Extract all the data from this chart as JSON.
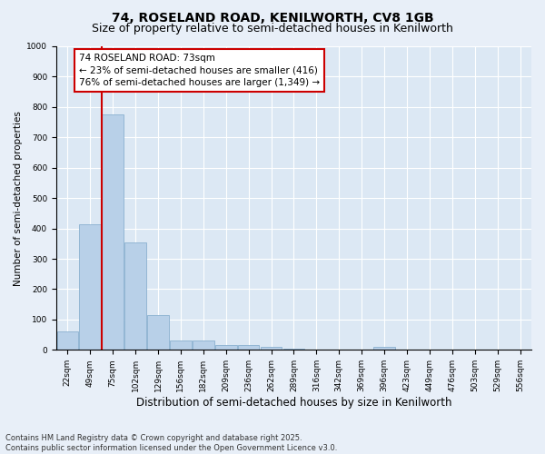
{
  "title1": "74, ROSELAND ROAD, KENILWORTH, CV8 1GB",
  "title2": "Size of property relative to semi-detached houses in Kenilworth",
  "xlabel": "Distribution of semi-detached houses by size in Kenilworth",
  "ylabel": "Number of semi-detached properties",
  "categories": [
    "22sqm",
    "49sqm",
    "75sqm",
    "102sqm",
    "129sqm",
    "156sqm",
    "182sqm",
    "209sqm",
    "236sqm",
    "262sqm",
    "289sqm",
    "316sqm",
    "342sqm",
    "369sqm",
    "396sqm",
    "423sqm",
    "449sqm",
    "476sqm",
    "503sqm",
    "529sqm",
    "556sqm"
  ],
  "values": [
    60,
    415,
    775,
    355,
    115,
    30,
    30,
    15,
    15,
    10,
    5,
    0,
    0,
    0,
    10,
    0,
    0,
    0,
    0,
    0,
    0
  ],
  "bar_color": "#b8d0e8",
  "bar_edge_color": "#8ab0d0",
  "vline_x": 1.5,
  "vline_color": "#cc0000",
  "annotation_text": "74 ROSELAND ROAD: 73sqm\n← 23% of semi-detached houses are smaller (416)\n76% of semi-detached houses are larger (1,349) →",
  "ylim": [
    0,
    1000
  ],
  "yticks": [
    0,
    100,
    200,
    300,
    400,
    500,
    600,
    700,
    800,
    900,
    1000
  ],
  "background_color": "#e8eff8",
  "plot_bg_color": "#dce8f4",
  "footer": "Contains HM Land Registry data © Crown copyright and database right 2025.\nContains public sector information licensed under the Open Government Licence v3.0.",
  "title1_fontsize": 10,
  "title2_fontsize": 9,
  "xlabel_fontsize": 8.5,
  "ylabel_fontsize": 7.5,
  "tick_fontsize": 6.5,
  "annotation_fontsize": 7.5,
  "footer_fontsize": 6
}
